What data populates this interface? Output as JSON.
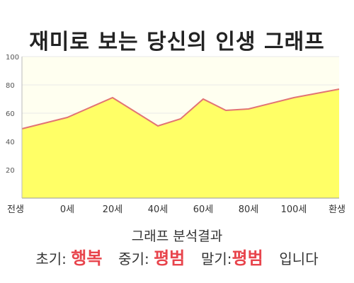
{
  "chart_data": {
    "type": "area",
    "title": "재미로 보는 당신의 인생 그래프",
    "x_labels": [
      "전생",
      "0세",
      "20세",
      "40세",
      "60세",
      "80세",
      "100세",
      "환생"
    ],
    "x": [
      -20,
      0,
      20,
      40,
      50,
      60,
      70,
      80,
      100,
      120
    ],
    "values": [
      49,
      57,
      71,
      51,
      56,
      70,
      62,
      63,
      71,
      77
    ],
    "yticks": [
      20,
      40,
      60,
      80,
      100
    ],
    "ylim": [
      0,
      100
    ],
    "grid": true,
    "colors": {
      "fill": "#ffff66",
      "line": "#e27474",
      "plot_bg": "#fffff0",
      "grid": "#e8e8e8"
    }
  },
  "summary": {
    "title": "그래프 분석결과",
    "early_label": "초기:",
    "early_value": "행복",
    "middle_label": "중기:",
    "middle_value": "평범",
    "late_label": "말기:",
    "late_value": "평범",
    "suffix": "입니다"
  }
}
